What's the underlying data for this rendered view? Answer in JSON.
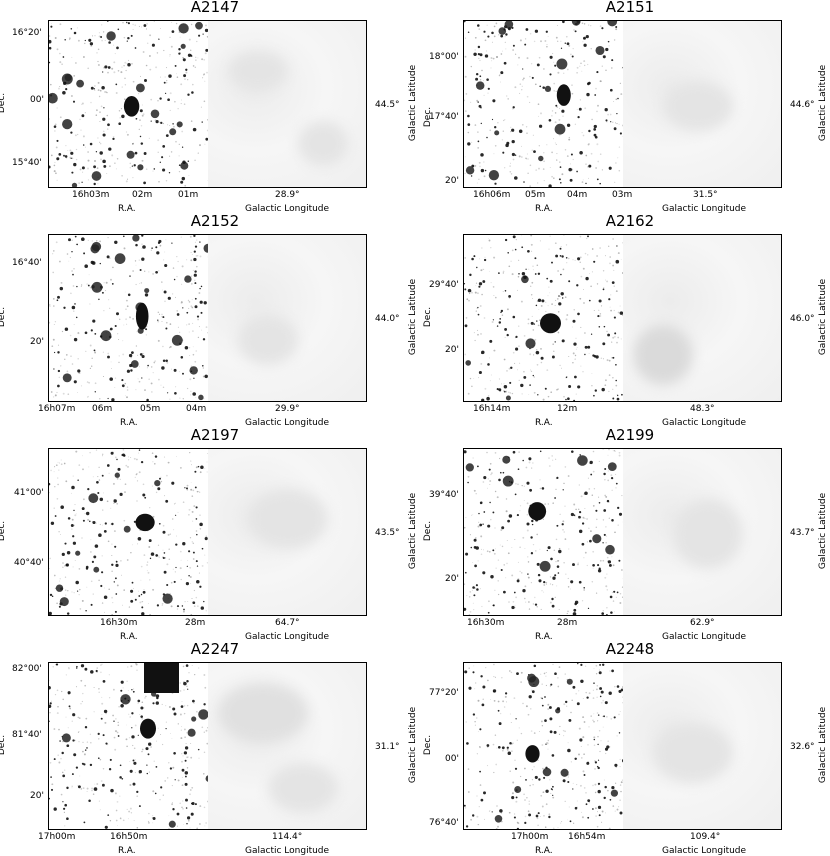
{
  "common": {
    "ra_label": "R.A.",
    "dec_label": "Dec.",
    "glon_label": "Galactic Longitude",
    "glat_label": "Galactic Latitude"
  },
  "panels": [
    {
      "title": "A2147",
      "ra_ticks": [
        "16h03m",
        "02m",
        "01m"
      ],
      "dec_ticks": [
        "16°20'",
        "00'",
        "15°40'"
      ],
      "glon": "28.9°",
      "glat": "44.5°"
    },
    {
      "title": "A2151",
      "ra_ticks": [
        "16h06m",
        "05m",
        "04m",
        "03m"
      ],
      "dec_ticks": [
        "18°00'",
        "17°40'",
        "20'"
      ],
      "glon": "31.5°",
      "glat": "44.6°"
    },
    {
      "title": "A2152",
      "ra_ticks": [
        "16h07m",
        "06m",
        "05m",
        "04m"
      ],
      "dec_ticks": [
        "16°40'",
        "20'"
      ],
      "glon": "29.9°",
      "glat": "44.0°"
    },
    {
      "title": "A2162",
      "ra_ticks": [
        "16h14m",
        "12m"
      ],
      "dec_ticks": [
        "29°40'",
        "20'"
      ],
      "glon": "48.3°",
      "glat": "46.0°"
    },
    {
      "title": "A2197",
      "ra_ticks": [
        "16h30m",
        "28m"
      ],
      "dec_ticks": [
        "41°00'",
        "40°40'"
      ],
      "glon": "64.7°",
      "glat": "43.5°"
    },
    {
      "title": "A2199",
      "ra_ticks": [
        "16h30m",
        "28m"
      ],
      "dec_ticks": [
        "39°40'",
        "20'"
      ],
      "glon": "62.9°",
      "glat": "43.7°"
    },
    {
      "title": "A2247",
      "ra_ticks": [
        "17h00m",
        "16h50m"
      ],
      "dec_ticks": [
        "82°00'",
        "81°40'",
        "20'"
      ],
      "glon": "114.4°",
      "glat": "31.1°"
    },
    {
      "title": "A2248",
      "ra_ticks": [
        "17h00m",
        "16h54m"
      ],
      "dec_ticks": [
        "77°20'",
        "00'",
        "76°40'"
      ],
      "glon": "109.4°",
      "glat": "32.6°"
    }
  ]
}
